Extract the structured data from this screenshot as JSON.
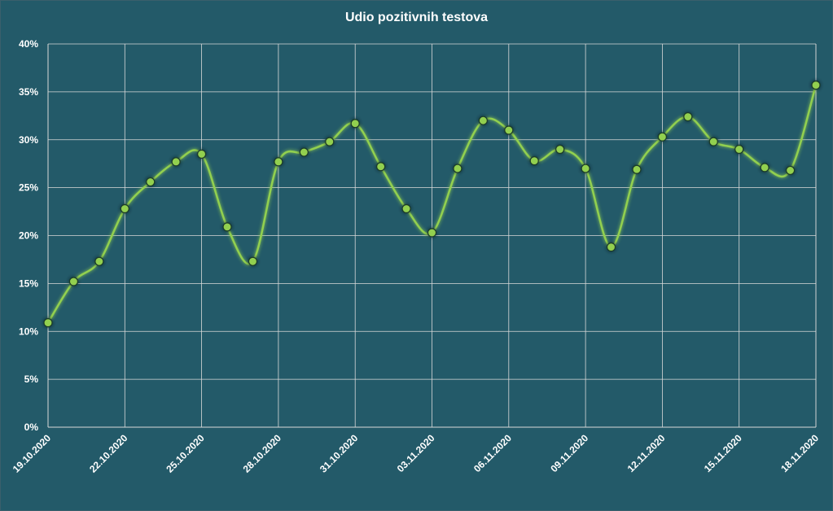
{
  "chart_data": {
    "type": "line",
    "title": "Udio pozitivnih testova",
    "xlabel": "",
    "ylabel": "",
    "ylim": [
      0,
      40
    ],
    "yticks": [
      "0%",
      "5%",
      "10%",
      "15%",
      "20%",
      "25%",
      "30%",
      "35%",
      "40%"
    ],
    "grid": true,
    "smooth": true,
    "colors": {
      "background": "#235a69",
      "line": "#92d050",
      "marker": "#92d050",
      "grid": "#d9d9d9",
      "text": "#ffffff"
    },
    "x": [
      "19.10.2020",
      "20.10.2020",
      "21.10.2020",
      "22.10.2020",
      "23.10.2020",
      "24.10.2020",
      "25.10.2020",
      "26.10.2020",
      "27.10.2020",
      "28.10.2020",
      "29.10.2020",
      "30.10.2020",
      "31.10.2020",
      "01.11.2020",
      "02.11.2020",
      "03.11.2020",
      "04.11.2020",
      "05.11.2020",
      "06.11.2020",
      "07.11.2020",
      "08.11.2020",
      "09.11.2020",
      "10.11.2020",
      "11.11.2020",
      "12.11.2020",
      "13.11.2020",
      "14.11.2020",
      "15.11.2020",
      "16.11.2020",
      "17.11.2020",
      "18.11.2020"
    ],
    "xtick_labels": [
      "19.10.2020",
      "22.10.2020",
      "25.10.2020",
      "28.10.2020",
      "31.10.2020",
      "03.11.2020",
      "06.11.2020",
      "09.11.2020",
      "12.11.2020",
      "15.11.2020",
      "18.11.2020"
    ],
    "series": [
      {
        "values": [
          10.9,
          15.2,
          17.3,
          22.8,
          25.6,
          27.7,
          28.5,
          20.9,
          17.3,
          27.7,
          28.7,
          29.8,
          31.7,
          27.2,
          22.8,
          20.3,
          27.0,
          32.0,
          31.0,
          27.8,
          29.0,
          27.0,
          18.8,
          26.9,
          30.3,
          32.4,
          29.8,
          29.0,
          27.1,
          26.8,
          35.7
        ]
      }
    ]
  }
}
